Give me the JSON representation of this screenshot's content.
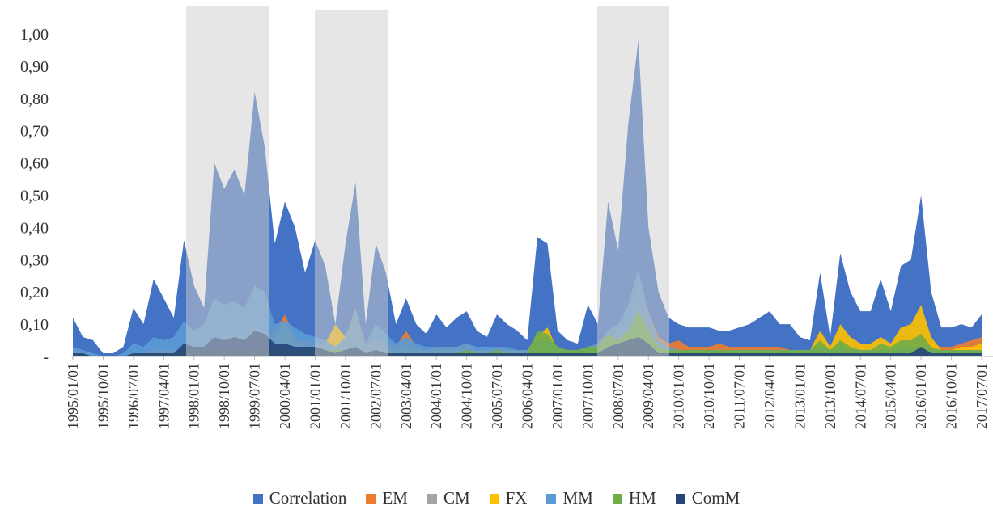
{
  "chart_data": {
    "type": "area",
    "categories": [
      "1995/01/01",
      null,
      null,
      "1995/10/01",
      null,
      null,
      "1996/07/01",
      null,
      null,
      "1997/04/01",
      null,
      null,
      "1998/01/01",
      null,
      null,
      "1998/10/01",
      null,
      null,
      "1999/07/01",
      null,
      null,
      "2000/04/01",
      null,
      null,
      "2001/01/01",
      null,
      null,
      "2001/10/01",
      null,
      null,
      "2002/07/01",
      null,
      null,
      "2003/04/01",
      null,
      null,
      "2004/01/01",
      null,
      null,
      "2004/10/01",
      null,
      null,
      "2005/07/01",
      null,
      null,
      "2006/04/01",
      null,
      null,
      "2007/01/01",
      null,
      null,
      "2007/10/01",
      null,
      null,
      "2008/07/01",
      null,
      null,
      "2009/04/01",
      null,
      null,
      "2010/01/01",
      null,
      null,
      "2010/10/01",
      null,
      null,
      "2011/07/01",
      null,
      null,
      "2012/04/01",
      null,
      null,
      "2013/01/01",
      null,
      null,
      "2013/10/01",
      null,
      null,
      "2014/07/01",
      null,
      null,
      "2015/04/01",
      null,
      null,
      "2016/01/01",
      null,
      null,
      "2016/10/01",
      null,
      null,
      "2017/07/01"
    ],
    "series": [
      {
        "name": "Correlation",
        "color": "#4472c4",
        "values": [
          0.12,
          0.06,
          0.05,
          0.01,
          0.01,
          0.03,
          0.15,
          0.1,
          0.24,
          0.18,
          0.12,
          0.36,
          0.22,
          0.15,
          0.6,
          0.52,
          0.58,
          0.5,
          0.82,
          0.65,
          0.35,
          0.48,
          0.4,
          0.26,
          0.36,
          0.28,
          0.1,
          0.35,
          0.54,
          0.1,
          0.35,
          0.26,
          0.1,
          0.18,
          0.1,
          0.07,
          0.13,
          0.09,
          0.12,
          0.14,
          0.08,
          0.06,
          0.13,
          0.1,
          0.08,
          0.05,
          0.37,
          0.35,
          0.08,
          0.05,
          0.04,
          0.16,
          0.1,
          0.48,
          0.33,
          0.72,
          0.98,
          0.4,
          0.2,
          0.12,
          0.1,
          0.09,
          0.09,
          0.09,
          0.08,
          0.08,
          0.09,
          0.1,
          0.12,
          0.14,
          0.1,
          0.1,
          0.06,
          0.05,
          0.26,
          0.06,
          0.32,
          0.2,
          0.14,
          0.14,
          0.24,
          0.14,
          0.28,
          0.3,
          0.5,
          0.2,
          0.09,
          0.09,
          0.1,
          0.09,
          0.13
        ]
      },
      {
        "name": "EM",
        "color": "#ed7d31",
        "values": [
          0.01,
          0.01,
          0,
          0,
          0,
          0,
          0.01,
          0.01,
          0.02,
          0.02,
          0.02,
          0.03,
          0.03,
          0.03,
          0.05,
          0.05,
          0.06,
          0.06,
          0.07,
          0.06,
          0.08,
          0.13,
          0.06,
          0.05,
          0.04,
          0.04,
          0.03,
          0.04,
          0.15,
          0.03,
          0.06,
          0.04,
          0.03,
          0.08,
          0.03,
          0.02,
          0.03,
          0.03,
          0.03,
          0.04,
          0.02,
          0.02,
          0.03,
          0.02,
          0.02,
          0.02,
          0.05,
          0.06,
          0.02,
          0.02,
          0.02,
          0.03,
          0.04,
          0.06,
          0.08,
          0.1,
          0.22,
          0.14,
          0.06,
          0.04,
          0.05,
          0.03,
          0.03,
          0.03,
          0.04,
          0.03,
          0.03,
          0.03,
          0.03,
          0.03,
          0.03,
          0.02,
          0.02,
          0.02,
          0.03,
          0.02,
          0.04,
          0.03,
          0.02,
          0.02,
          0.03,
          0.02,
          0.04,
          0.04,
          0.06,
          0.04,
          0.03,
          0.03,
          0.04,
          0.05,
          0.06
        ]
      },
      {
        "name": "CM",
        "color": "#a5a5a5",
        "values": [
          0.01,
          0.01,
          0,
          0,
          0,
          0,
          0.01,
          0.01,
          0.01,
          0.01,
          0.01,
          0.03,
          0.02,
          0.03,
          0.06,
          0.06,
          0.07,
          0.06,
          0.09,
          0.08,
          0.04,
          0.04,
          0.04,
          0.03,
          0.03,
          0.02,
          0.02,
          0.03,
          0.05,
          0.02,
          0.03,
          0.02,
          0.01,
          0.01,
          0.01,
          0.01,
          0.01,
          0.01,
          0.01,
          0.01,
          0.01,
          0.01,
          0.01,
          0.01,
          0.01,
          0.01,
          0.02,
          0.02,
          0.01,
          0.01,
          0.01,
          0.01,
          0.01,
          0.03,
          0.03,
          0.03,
          0.04,
          0.03,
          0.01,
          0.01,
          0.01,
          0.01,
          0.01,
          0.01,
          0.01,
          0.01,
          0.01,
          0.01,
          0.01,
          0.01,
          0.01,
          0.01,
          0.01,
          0.01,
          0.01,
          0.01,
          0.01,
          0.01,
          0.01,
          0.01,
          0.01,
          0.01,
          0.01,
          0.01,
          0.02,
          0.01,
          0.01,
          0.01,
          0.01,
          0.01,
          0.01
        ]
      },
      {
        "name": "FX",
        "color": "#ffc000",
        "values": [
          0.01,
          0.01,
          0,
          0,
          0,
          0,
          0.01,
          0.01,
          0.01,
          0.01,
          0.01,
          0.01,
          0.01,
          0.01,
          0.01,
          0.01,
          0.01,
          0.01,
          0.01,
          0.01,
          0.05,
          0.11,
          0.04,
          0.03,
          0.03,
          0.04,
          0.1,
          0.06,
          0.15,
          0.03,
          0.05,
          0.03,
          0.02,
          0.02,
          0.02,
          0.02,
          0.02,
          0.02,
          0.02,
          0.02,
          0.02,
          0.02,
          0.02,
          0.02,
          0.02,
          0.02,
          0.06,
          0.09,
          0.02,
          0.02,
          0.02,
          0.02,
          0.02,
          0.05,
          0.06,
          0.08,
          0.12,
          0.08,
          0.04,
          0.03,
          0.02,
          0.02,
          0.02,
          0.02,
          0.02,
          0.02,
          0.02,
          0.02,
          0.02,
          0.02,
          0.02,
          0.02,
          0.02,
          0.02,
          0.08,
          0.03,
          0.1,
          0.06,
          0.04,
          0.04,
          0.06,
          0.04,
          0.09,
          0.1,
          0.16,
          0.06,
          0.02,
          0.02,
          0.03,
          0.03,
          0.04
        ]
      },
      {
        "name": "MM",
        "color": "#5b9bd5",
        "values": [
          0.03,
          0.02,
          0.01,
          0,
          0,
          0.01,
          0.04,
          0.03,
          0.06,
          0.05,
          0.06,
          0.11,
          0.08,
          0.1,
          0.18,
          0.16,
          0.17,
          0.15,
          0.22,
          0.2,
          0.1,
          0.11,
          0.09,
          0.07,
          0.06,
          0.05,
          0.03,
          0.06,
          0.15,
          0.04,
          0.1,
          0.07,
          0.04,
          0.06,
          0.04,
          0.03,
          0.03,
          0.03,
          0.03,
          0.04,
          0.03,
          0.03,
          0.03,
          0.03,
          0.02,
          0.02,
          0.05,
          0.05,
          0.03,
          0.02,
          0.02,
          0.03,
          0.04,
          0.08,
          0.1,
          0.16,
          0.27,
          0.14,
          0.05,
          0.03,
          0.02,
          0.02,
          0.02,
          0.02,
          0.02,
          0.02,
          0.02,
          0.02,
          0.02,
          0.02,
          0.02,
          0.02,
          0.02,
          0.02,
          0.03,
          0.02,
          0.03,
          0.02,
          0.02,
          0.02,
          0.02,
          0.02,
          0.03,
          0.03,
          0.03,
          0.02,
          0.02,
          0.02,
          0.02,
          0.02,
          0.02
        ]
      },
      {
        "name": "HM",
        "color": "#70ad47",
        "values": [
          0.01,
          0.01,
          0,
          0,
          0,
          0,
          0.01,
          0.01,
          0.01,
          0.01,
          0.01,
          0.02,
          0.02,
          0.02,
          0.02,
          0.02,
          0.02,
          0.02,
          0.02,
          0.02,
          0.02,
          0.02,
          0.02,
          0.02,
          0.02,
          0.02,
          0.02,
          0.02,
          0.02,
          0.01,
          0.02,
          0.01,
          0.01,
          0.01,
          0.01,
          0.01,
          0.01,
          0.01,
          0.01,
          0.02,
          0.01,
          0.01,
          0.02,
          0.01,
          0.01,
          0.01,
          0.08,
          0.07,
          0.03,
          0.02,
          0.02,
          0.03,
          0.03,
          0.07,
          0.05,
          0.08,
          0.14,
          0.08,
          0.03,
          0.02,
          0.02,
          0.02,
          0.02,
          0.02,
          0.02,
          0.02,
          0.02,
          0.02,
          0.02,
          0.02,
          0.02,
          0.02,
          0.02,
          0.02,
          0.05,
          0.02,
          0.05,
          0.03,
          0.02,
          0.02,
          0.04,
          0.03,
          0.05,
          0.05,
          0.07,
          0.03,
          0.02,
          0.02,
          0.02,
          0.02,
          0.02
        ]
      },
      {
        "name": "ComM",
        "color": "#264478",
        "values": [
          0.01,
          0.01,
          0,
          0,
          0,
          0,
          0.01,
          0.01,
          0.01,
          0.01,
          0.01,
          0.04,
          0.03,
          0.03,
          0.06,
          0.05,
          0.06,
          0.05,
          0.08,
          0.07,
          0.04,
          0.04,
          0.03,
          0.03,
          0.03,
          0.02,
          0.01,
          0.02,
          0.03,
          0.01,
          0.02,
          0.01,
          0.01,
          0.01,
          0.01,
          0.01,
          0.01,
          0.01,
          0.01,
          0.01,
          0.01,
          0.01,
          0.01,
          0.01,
          0.01,
          0.01,
          0.01,
          0.01,
          0.01,
          0.01,
          0.01,
          0.01,
          0.01,
          0.03,
          0.04,
          0.05,
          0.06,
          0.04,
          0.01,
          0.01,
          0.01,
          0.01,
          0.01,
          0.01,
          0.01,
          0.01,
          0.01,
          0.01,
          0.01,
          0.01,
          0.01,
          0.01,
          0.01,
          0.01,
          0.01,
          0.01,
          0.01,
          0.01,
          0.01,
          0.01,
          0.01,
          0.01,
          0.01,
          0.01,
          0.03,
          0.01,
          0.01,
          0.01,
          0.01,
          0.01,
          0.01
        ]
      }
    ],
    "ylim": [
      0,
      1.05
    ],
    "yticks": [
      {
        "value": 0,
        "label": "-"
      },
      {
        "value": 0.1,
        "label": "0,10"
      },
      {
        "value": 0.2,
        "label": "0,20"
      },
      {
        "value": 0.3,
        "label": "0,30"
      },
      {
        "value": 0.4,
        "label": "0,40"
      },
      {
        "value": 0.5,
        "label": "0,50"
      },
      {
        "value": 0.6,
        "label": "0,60"
      },
      {
        "value": 0.7,
        "label": "0,70"
      },
      {
        "value": 0.8,
        "label": "0,80"
      },
      {
        "value": 0.9,
        "label": "0,90"
      },
      {
        "value": 1.0,
        "label": "1,00"
      }
    ],
    "grid": false,
    "legend": "bottom"
  }
}
